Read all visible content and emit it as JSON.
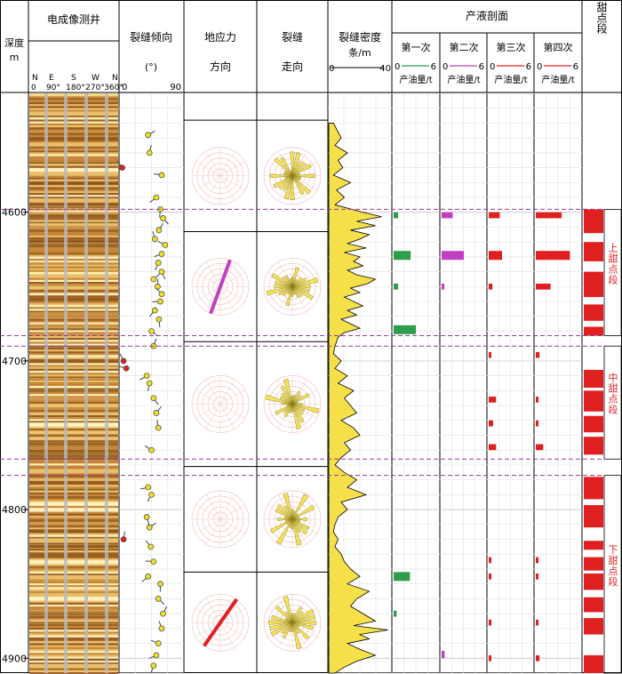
{
  "headers": {
    "depth": {
      "line1": "深度",
      "line2": "m"
    },
    "image_log": "电成像测井",
    "dip": {
      "title": "裂缝倾向",
      "unit": "(°)",
      "min": "0",
      "max": "90"
    },
    "stress": {
      "line1": "地应力",
      "line2": "方向"
    },
    "strike": {
      "line1": "裂缝",
      "line2": "走向"
    },
    "density": {
      "line1": "裂缝密度",
      "line2": "条/m",
      "min": "0",
      "max": "40"
    },
    "production": {
      "title": "产液剖面",
      "tracks": [
        {
          "name": "第一次",
          "min": "0",
          "max": "6",
          "unit": "产油量/t",
          "color": "#2e9e4a"
        },
        {
          "name": "第二次",
          "min": "0",
          "max": "6",
          "unit": "产油量/t",
          "color": "#c040c0"
        },
        {
          "name": "第三次",
          "min": "0",
          "max": "6",
          "unit": "产油量/t",
          "color": "#e02020"
        },
        {
          "name": "第四次",
          "min": "0",
          "max": "6",
          "unit": "产油量/t",
          "color": "#e02020"
        }
      ]
    },
    "sweet": "甜点段"
  },
  "azimuth_labels": {
    "letters": [
      "N",
      "E",
      "S",
      "W",
      "N"
    ],
    "degrees": [
      "0",
      "90°",
      "180°",
      "270°",
      "360°"
    ]
  },
  "depth_ticks": [
    "4600",
    "4700",
    "4800",
    "4900"
  ],
  "zone_labels": [
    "上甜点段",
    "中甜点段",
    "下甜点段"
  ],
  "chart_data": {
    "type": "well-log",
    "depth_range": [
      4520,
      4910
    ],
    "depth_unit": "m",
    "density_range": [
      0,
      40
    ],
    "production_range": [
      0,
      6
    ],
    "zone_boundaries": [
      4598,
      4683,
      4690,
      4766,
      4777
    ],
    "zones": [
      {
        "label": "上甜点段",
        "top": 4598,
        "bottom": 4683
      },
      {
        "label": "中甜点段",
        "top": 4690,
        "bottom": 4766
      },
      {
        "label": "下甜点段",
        "top": 4777,
        "bottom": 4910
      }
    ],
    "rose_intervals": [
      {
        "top": 4538,
        "bottom": 4613,
        "stress_azimuth": null
      },
      {
        "top": 4613,
        "bottom": 4687,
        "stress_azimuth": 20
      },
      {
        "top": 4687,
        "bottom": 4771,
        "stress_azimuth": null
      },
      {
        "top": 4771,
        "bottom": 4842,
        "stress_azimuth": null
      },
      {
        "top": 4842,
        "bottom": 4910,
        "stress_azimuth": 35
      }
    ],
    "production": [
      {
        "name": "第一次",
        "color": "#2e9e4a",
        "bars": [
          [
            4600,
            4604,
            0.6
          ],
          [
            4626,
            4632,
            2.3
          ],
          [
            4648,
            4652,
            0.6
          ],
          [
            4676,
            4682,
            3.0
          ],
          [
            4842,
            4848,
            2.2
          ],
          [
            4868,
            4872,
            0.4
          ]
        ]
      },
      {
        "name": "第二次",
        "color": "#c040c0",
        "bars": [
          [
            4600,
            4604,
            1.5
          ],
          [
            4626,
            4632,
            3.0
          ],
          [
            4648,
            4652,
            0.3
          ],
          [
            4895,
            4900,
            0.4
          ]
        ]
      },
      {
        "name": "第三次",
        "color": "#e02020",
        "bars": [
          [
            4600,
            4604,
            1.5
          ],
          [
            4626,
            4632,
            1.8
          ],
          [
            4648,
            4652,
            0.5
          ],
          [
            4694,
            4698,
            0.3
          ],
          [
            4724,
            4728,
            1.0
          ],
          [
            4740,
            4744,
            0.6
          ],
          [
            4756,
            4760,
            1.0
          ],
          [
            4832,
            4836,
            0.3
          ],
          [
            4843,
            4847,
            0.3
          ],
          [
            4874,
            4878,
            0.3
          ],
          [
            4898,
            4902,
            0.3
          ]
        ]
      },
      {
        "name": "第四次",
        "color": "#e02020",
        "bars": [
          [
            4600,
            4604,
            3.5
          ],
          [
            4626,
            4632,
            4.6
          ],
          [
            4648,
            4652,
            2.0
          ],
          [
            4694,
            4698,
            0.5
          ],
          [
            4724,
            4728,
            0.3
          ],
          [
            4740,
            4744,
            0.3
          ],
          [
            4756,
            4760,
            1.0
          ],
          [
            4832,
            4836,
            0.3
          ],
          [
            4843,
            4847,
            0.3
          ],
          [
            4874,
            4878,
            0.3
          ],
          [
            4898,
            4902,
            0.5
          ]
        ]
      }
    ],
    "sweet_spots": [
      [
        4598,
        4614
      ],
      [
        4620,
        4633
      ],
      [
        4640,
        4657
      ],
      [
        4662,
        4673
      ],
      [
        4677,
        4683
      ],
      [
        4706,
        4718
      ],
      [
        4720,
        4734
      ],
      [
        4737,
        4748
      ],
      [
        4751,
        4763
      ],
      [
        4778,
        4793
      ],
      [
        4797,
        4812
      ],
      [
        4821,
        4827
      ],
      [
        4832,
        4841
      ],
      [
        4843,
        4854
      ],
      [
        4859,
        4869
      ],
      [
        4873,
        4884
      ],
      [
        4898,
        4910
      ]
    ],
    "density_points": [
      [
        4540,
        3
      ],
      [
        4550,
        8
      ],
      [
        4555,
        4
      ],
      [
        4560,
        12
      ],
      [
        4565,
        6
      ],
      [
        4570,
        9
      ],
      [
        4575,
        3
      ],
      [
        4580,
        14
      ],
      [
        4585,
        5
      ],
      [
        4590,
        10
      ],
      [
        4595,
        4
      ],
      [
        4600,
        22
      ],
      [
        4603,
        34
      ],
      [
        4606,
        18
      ],
      [
        4609,
        30
      ],
      [
        4612,
        14
      ],
      [
        4615,
        26
      ],
      [
        4618,
        20
      ],
      [
        4621,
        12
      ],
      [
        4624,
        24
      ],
      [
        4627,
        10
      ],
      [
        4630,
        20
      ],
      [
        4633,
        16
      ],
      [
        4636,
        22
      ],
      [
        4639,
        12
      ],
      [
        4642,
        18
      ],
      [
        4645,
        30
      ],
      [
        4648,
        25
      ],
      [
        4651,
        14
      ],
      [
        4654,
        20
      ],
      [
        4657,
        10
      ],
      [
        4660,
        16
      ],
      [
        4663,
        22
      ],
      [
        4666,
        12
      ],
      [
        4669,
        18
      ],
      [
        4672,
        8
      ],
      [
        4675,
        14
      ],
      [
        4678,
        20
      ],
      [
        4681,
        10
      ],
      [
        4684,
        6
      ],
      [
        4690,
        4
      ],
      [
        4695,
        3
      ],
      [
        4700,
        8
      ],
      [
        4705,
        4
      ],
      [
        4710,
        12
      ],
      [
        4715,
        6
      ],
      [
        4720,
        16
      ],
      [
        4725,
        10
      ],
      [
        4730,
        14
      ],
      [
        4735,
        18
      ],
      [
        4740,
        8
      ],
      [
        4745,
        16
      ],
      [
        4750,
        20
      ],
      [
        4755,
        10
      ],
      [
        4760,
        14
      ],
      [
        4765,
        8
      ],
      [
        4770,
        4
      ],
      [
        4775,
        10
      ],
      [
        4780,
        18
      ],
      [
        4785,
        12
      ],
      [
        4790,
        24
      ],
      [
        4795,
        8
      ],
      [
        4800,
        12
      ],
      [
        4805,
        6
      ],
      [
        4810,
        4
      ],
      [
        4815,
        3
      ],
      [
        4820,
        6
      ],
      [
        4825,
        4
      ],
      [
        4830,
        8
      ],
      [
        4835,
        10
      ],
      [
        4840,
        14
      ],
      [
        4845,
        20
      ],
      [
        4850,
        12
      ],
      [
        4855,
        26
      ],
      [
        4860,
        18
      ],
      [
        4865,
        14
      ],
      [
        4870,
        22
      ],
      [
        4875,
        30
      ],
      [
        4878,
        16
      ],
      [
        4881,
        38
      ],
      [
        4884,
        20
      ],
      [
        4887,
        26
      ],
      [
        4890,
        12
      ],
      [
        4894,
        20
      ],
      [
        4898,
        30
      ],
      [
        4902,
        18
      ],
      [
        4906,
        10
      ],
      [
        4910,
        4
      ]
    ],
    "dip_points": [
      [
        4548,
        40
      ],
      [
        4560,
        42
      ],
      [
        4570,
        2
      ],
      [
        4575,
        60
      ],
      [
        4590,
        52
      ],
      [
        4598,
        58
      ],
      [
        4604,
        62
      ],
      [
        4612,
        56
      ],
      [
        4618,
        50
      ],
      [
        4622,
        65
      ],
      [
        4628,
        60
      ],
      [
        4634,
        55
      ],
      [
        4640,
        60
      ],
      [
        4645,
        48
      ],
      [
        4650,
        54
      ],
      [
        4655,
        60
      ],
      [
        4660,
        58
      ],
      [
        4666,
        50
      ],
      [
        4672,
        56
      ],
      [
        4680,
        45
      ],
      [
        4690,
        48
      ],
      [
        4700,
        4
      ],
      [
        4705,
        8
      ],
      [
        4710,
        38
      ],
      [
        4715,
        42
      ],
      [
        4725,
        48
      ],
      [
        4735,
        52
      ],
      [
        4745,
        55
      ],
      [
        4760,
        45
      ],
      [
        4785,
        40
      ],
      [
        4790,
        45
      ],
      [
        4805,
        38
      ],
      [
        4812,
        42
      ],
      [
        4820,
        4
      ],
      [
        4825,
        44
      ],
      [
        4835,
        48
      ],
      [
        4845,
        40
      ],
      [
        4850,
        58
      ],
      [
        4860,
        55
      ],
      [
        4870,
        62
      ],
      [
        4880,
        60
      ],
      [
        4890,
        55
      ],
      [
        4898,
        52
      ],
      [
        4905,
        48
      ]
    ]
  }
}
